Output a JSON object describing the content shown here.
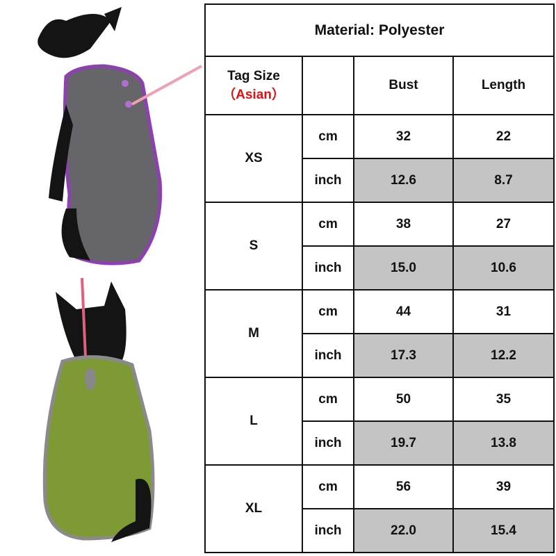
{
  "material_title": "Material:  Polyester",
  "header": {
    "tag_size": "Tag Size",
    "tag_region": "（Asian）",
    "unit": "",
    "bust": "Bust",
    "length": "Length"
  },
  "accent_color": "#e01010",
  "sizes": [
    {
      "size": "XS",
      "cm": {
        "unit": "cm",
        "bust": "32",
        "length": "22"
      },
      "inch": {
        "unit": "inch",
        "bust": "12.6",
        "length": "8.7"
      }
    },
    {
      "size": "S",
      "cm": {
        "unit": "cm",
        "bust": "38",
        "length": "27"
      },
      "inch": {
        "unit": "inch",
        "bust": "15.0",
        "length": "10.6"
      }
    },
    {
      "size": "M",
      "cm": {
        "unit": "cm",
        "bust": "44",
        "length": "31"
      },
      "inch": {
        "unit": "inch",
        "bust": "17.3",
        "length": "12.2"
      }
    },
    {
      "size": "L",
      "cm": {
        "unit": "cm",
        "bust": "50",
        "length": "35"
      },
      "inch": {
        "unit": "inch",
        "bust": "19.7",
        "length": "13.8"
      }
    },
    {
      "size": "XL",
      "cm": {
        "unit": "cm",
        "bust": "56",
        "length": "39"
      },
      "inch": {
        "unit": "inch",
        "bust": "22.0",
        "length": "15.4"
      }
    }
  ],
  "photos": [
    {
      "subject": "dog-gray-fleece-vest",
      "color": "#66666a",
      "trim": "#8e3fb0"
    },
    {
      "subject": "dog-green-fleece-vest",
      "color": "#7d9a35",
      "trim": "#8a8a8a"
    }
  ]
}
